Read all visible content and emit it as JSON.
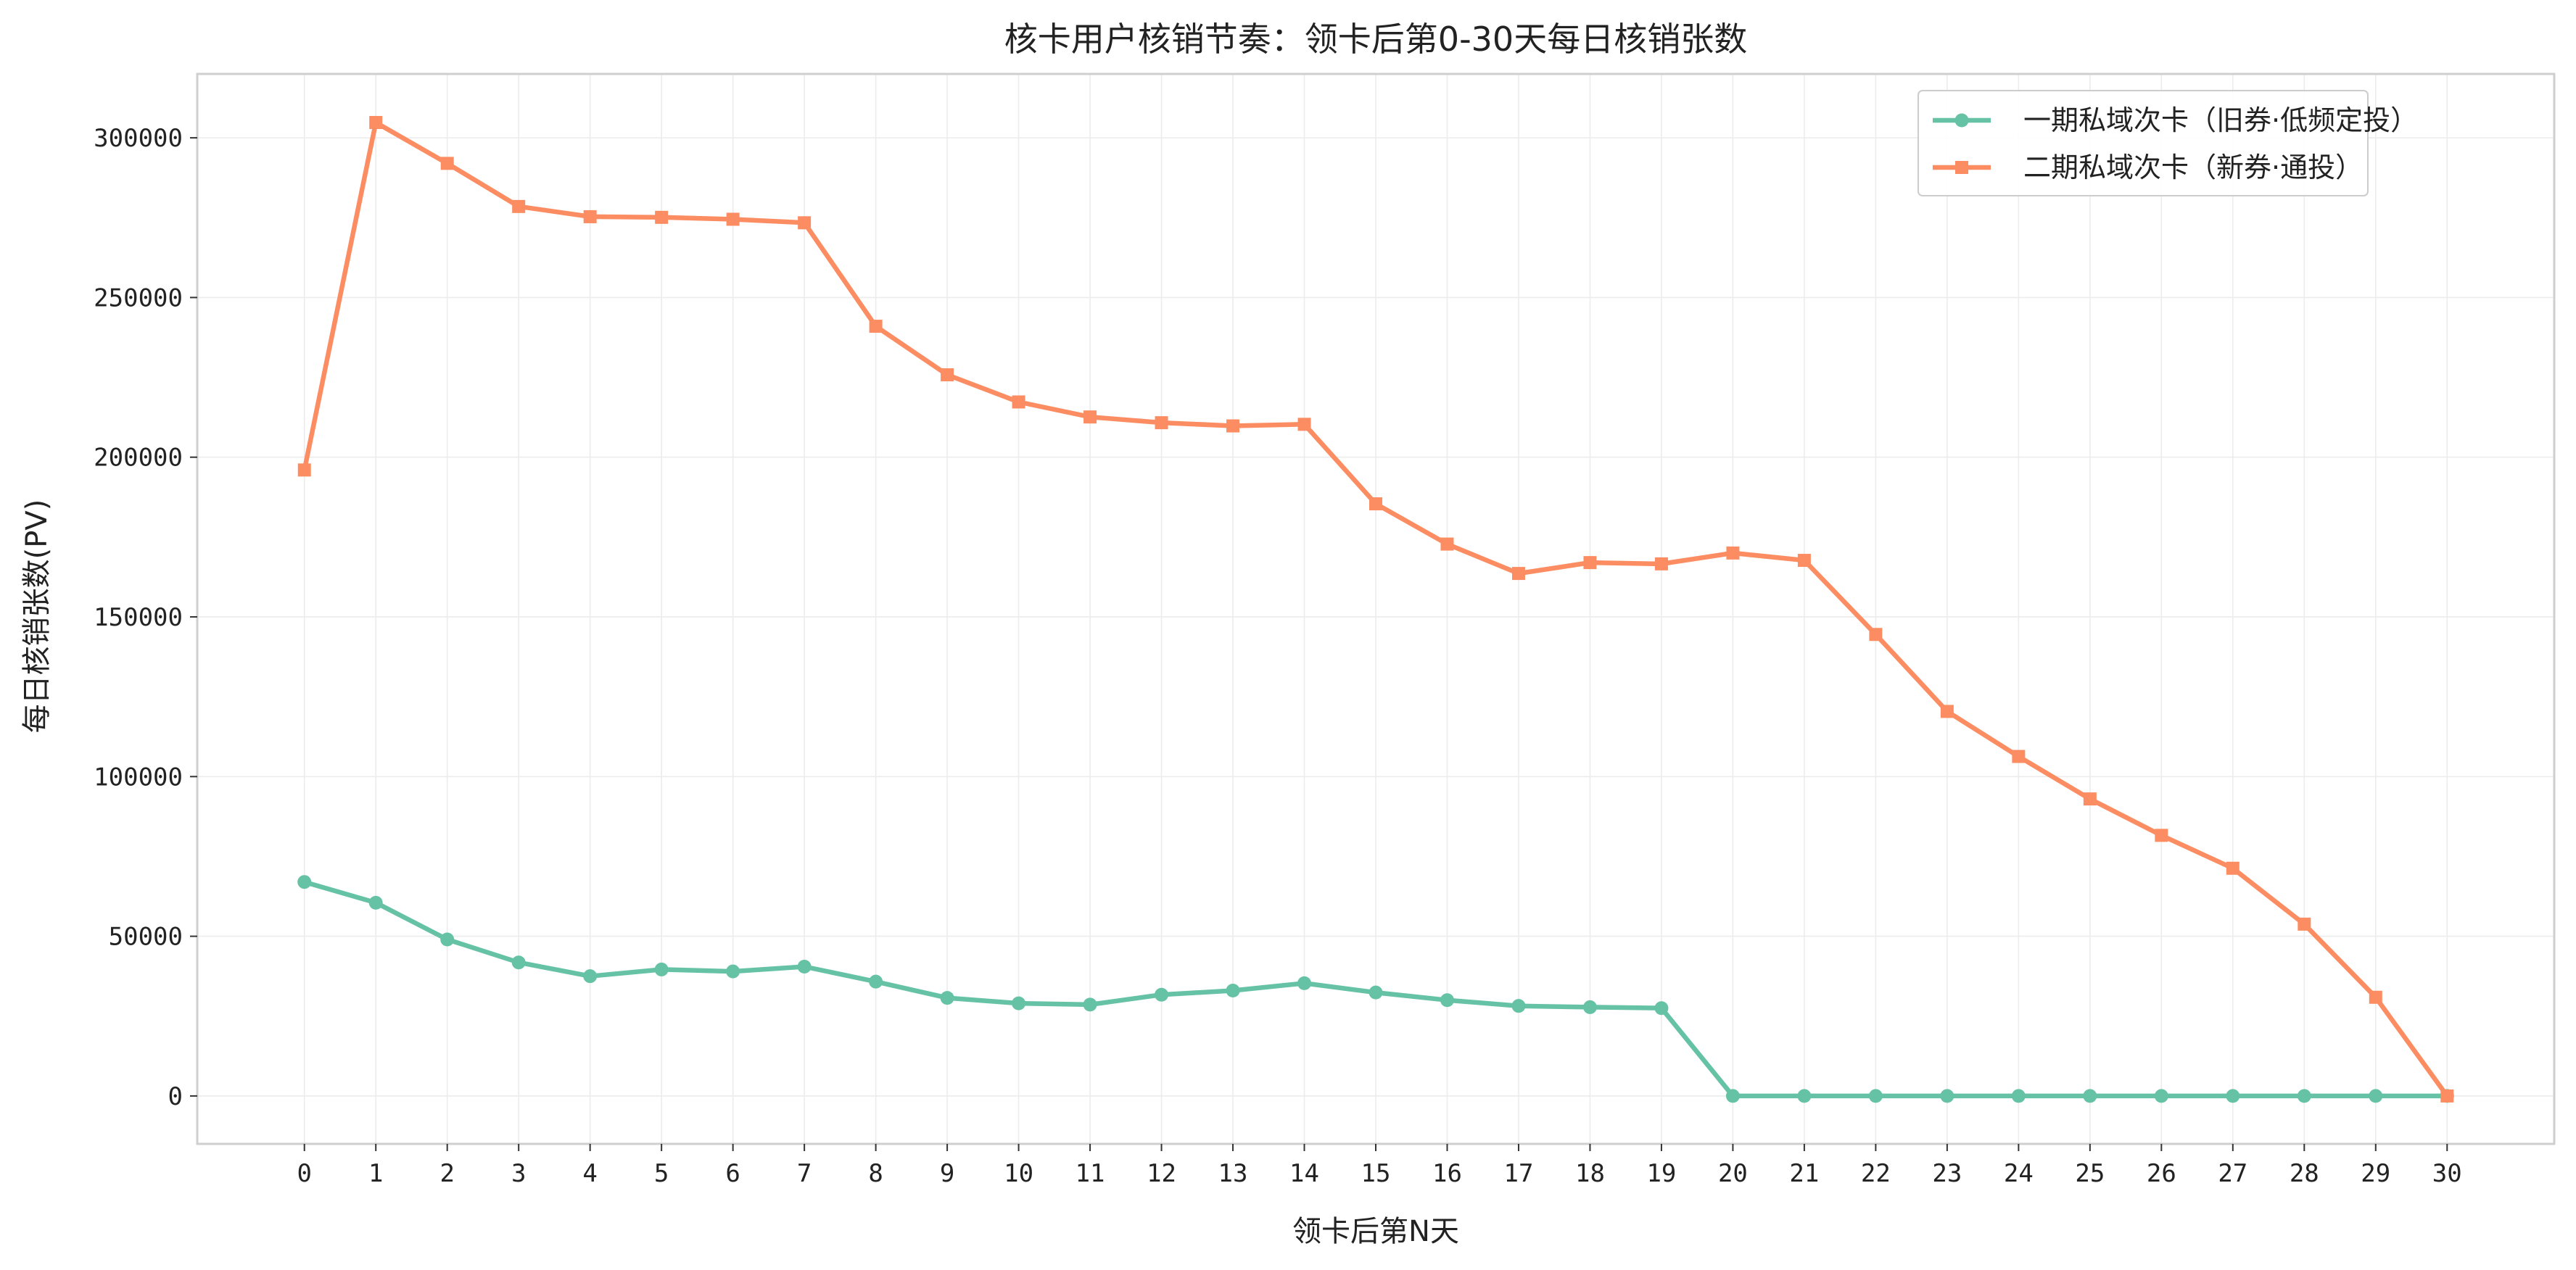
{
  "chart_data": {
    "type": "line",
    "title": "核卡用户核销节奏：领卡后第0-30天每日核销张数",
    "xlabel": "领卡后第N天",
    "ylabel": "每日核销张数(PV)",
    "x": [
      0,
      1,
      2,
      3,
      4,
      5,
      6,
      7,
      8,
      9,
      10,
      11,
      12,
      13,
      14,
      15,
      16,
      17,
      18,
      19,
      20,
      21,
      22,
      23,
      24,
      25,
      26,
      27,
      28,
      29,
      30
    ],
    "xlim": [
      -1.5,
      31.5
    ],
    "ylim": [
      -15000,
      320000
    ],
    "yticks": [
      0,
      50000,
      100000,
      150000,
      200000,
      250000,
      300000
    ],
    "grid": true,
    "legend_position": "top-right",
    "series": [
      {
        "name": "一期私域次卡（旧券·低频定投）",
        "color": "#66c2a5",
        "marker": "circle",
        "values": [
          67000,
          60500,
          49000,
          41800,
          37500,
          39600,
          39000,
          40500,
          35800,
          30700,
          29000,
          28600,
          31700,
          33000,
          35300,
          32400,
          30000,
          28200,
          27800,
          27500,
          0,
          0,
          0,
          0,
          0,
          0,
          0,
          0,
          0,
          0,
          0
        ]
      },
      {
        "name": "二期私域次卡（新券·通投）",
        "color": "#fc8d62",
        "marker": "square",
        "values": [
          196000,
          304800,
          292000,
          278500,
          275300,
          275100,
          274500,
          273400,
          241000,
          225800,
          217300,
          212600,
          210800,
          209800,
          210300,
          185400,
          172800,
          163600,
          167000,
          166600,
          170000,
          167700,
          144500,
          120400,
          106300,
          93000,
          81600,
          71300,
          53800,
          30900,
          0
        ]
      }
    ]
  }
}
